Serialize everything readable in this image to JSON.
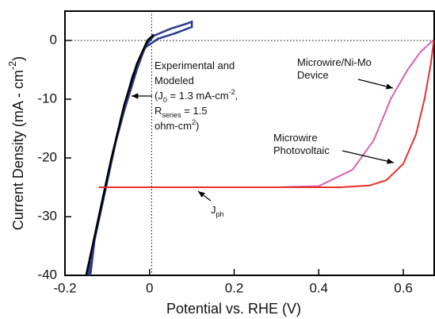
{
  "chart_data": {
    "type": "line",
    "x_label": "Potential vs. RHE (V)",
    "y_label": [
      "Current Density (mA - cm",
      {
        "sup": "-2"
      },
      ")"
    ],
    "xlim": [
      -0.2,
      0.673
    ],
    "ylim": [
      -40,
      5
    ],
    "xticks": [
      -0.2,
      0,
      0.2,
      0.4,
      0.6
    ],
    "yticks": [
      -40,
      -30,
      -20,
      -10,
      0
    ],
    "reference_lines": {
      "x": 0.005,
      "y": 0
    },
    "series": [
      {
        "name": "Experimental",
        "color": "#2b3a8f",
        "x": [
          -0.145,
          -0.12,
          -0.09,
          -0.06,
          -0.03,
          -0.01,
          0.01,
          0.05,
          0.09,
          0.1,
          0.1,
          0.06,
          0.02,
          -0.01,
          -0.04,
          -0.07,
          -0.1,
          -0.13,
          -0.14
        ],
        "values": [
          -40,
          -30,
          -20,
          -12,
          -5,
          -1,
          0.8,
          2,
          2.9,
          3.2,
          2.3,
          1.2,
          0.3,
          -1.2,
          -6,
          -14,
          -24,
          -34,
          -40
        ]
      },
      {
        "name": "Modeled",
        "color": "#000000",
        "x": [
          -0.15,
          -0.12,
          -0.09,
          -0.06,
          -0.03,
          -0.005,
          0.01
        ],
        "values": [
          -40,
          -30,
          -20,
          -11,
          -4,
          0,
          1
        ]
      },
      {
        "name": "Microwire/Ni-Mo Device",
        "color": "#d960b0",
        "x": [
          -0.12,
          0.3,
          0.4,
          0.48,
          0.53,
          0.57,
          0.61,
          0.64,
          0.67
        ],
        "values": [
          -25,
          -25,
          -24.8,
          -22,
          -17,
          -10,
          -5,
          -2,
          0
        ]
      },
      {
        "name": "Microwire Photovoltaic",
        "color": "#e8302a",
        "x": [
          -0.12,
          0.45,
          0.52,
          0.56,
          0.6,
          0.63,
          0.65,
          0.665,
          0.672
        ],
        "values": [
          -25,
          -25,
          -24.7,
          -23.8,
          -21,
          -16,
          -10,
          -4,
          0
        ]
      }
    ],
    "annotations": [
      {
        "lines": [
          [
            "Experimental and"
          ],
          [
            "Modeled"
          ],
          [
            "(J",
            {
              "sub": "0"
            },
            " = 1.3 mA-cm",
            {
              "sup": "-2"
            },
            ","
          ],
          [
            "R",
            {
              "sub": "series"
            },
            " = 1.5"
          ],
          [
            "ohm-cm",
            {
              "sup": "2"
            },
            ")"
          ]
        ]
      },
      {
        "lines": [
          [
            "Microwire/Ni-Mo"
          ],
          [
            "Device"
          ]
        ]
      },
      {
        "lines": [
          [
            "Microwire"
          ],
          [
            "Photovoltaic"
          ]
        ]
      },
      {
        "lines": [
          [
            "J",
            {
              "sub": "ph"
            }
          ]
        ]
      }
    ]
  }
}
